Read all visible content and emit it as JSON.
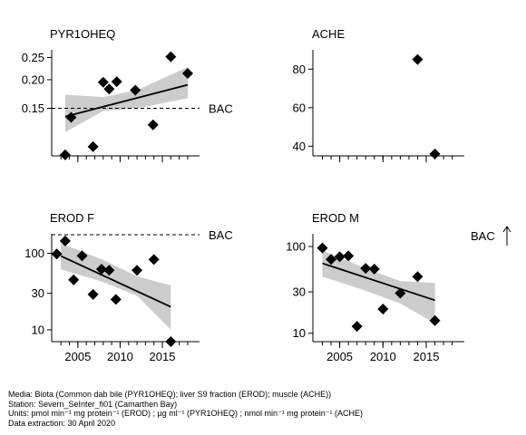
{
  "chart_data": [
    {
      "type": "scatter",
      "title": "PYR1OHEQ",
      "scale": "log",
      "ylim": [
        0.093,
        0.27
      ],
      "y_ticks": [
        0.15,
        0.2,
        0.25
      ],
      "y_tick_labels": [
        "0.15",
        "0.20",
        "0.25"
      ],
      "x_ticks": [
        2005,
        2010,
        2015
      ],
      "x_tick_labels": [
        "",
        "",
        ""
      ],
      "points": [
        {
          "x": 2003.5,
          "y": 0.094
        },
        {
          "x": 2004.2,
          "y": 0.137
        },
        {
          "x": 2006.8,
          "y": 0.102
        },
        {
          "x": 2008.0,
          "y": 0.195
        },
        {
          "x": 2008.7,
          "y": 0.182
        },
        {
          "x": 2009.6,
          "y": 0.196
        },
        {
          "x": 2011.8,
          "y": 0.18
        },
        {
          "x": 2013.9,
          "y": 0.127
        },
        {
          "x": 2016.0,
          "y": 0.252
        },
        {
          "x": 2018.0,
          "y": 0.213
        }
      ],
      "trend": {
        "x": [
          2003.5,
          2018.0
        ],
        "y": [
          0.138,
          0.19
        ]
      },
      "band": {
        "x": [
          2003.5,
          2008,
          2012,
          2018.0
        ],
        "lower": [
          0.118,
          0.146,
          0.15,
          0.166
        ],
        "upper": [
          0.172,
          0.168,
          0.18,
          0.227
        ]
      },
      "bac": {
        "value": 0.15,
        "label": "BAC"
      }
    },
    {
      "type": "scatter",
      "title": "ACHE",
      "scale": "linear",
      "ylim": [
        35,
        90
      ],
      "y_ticks": [
        40,
        60,
        80
      ],
      "y_tick_labels": [
        "40",
        "60",
        "80"
      ],
      "x_ticks": [
        2005,
        2010,
        2015
      ],
      "x_tick_labels": [
        "",
        "",
        ""
      ],
      "points": [
        {
          "x": 2014.0,
          "y": 85
        },
        {
          "x": 2016.0,
          "y": 36
        }
      ]
    },
    {
      "type": "scatter",
      "title": "EROD F",
      "scale": "log",
      "ylim": [
        7,
        180
      ],
      "y_ticks": [
        10,
        30,
        100
      ],
      "y_tick_labels": [
        "10",
        "30",
        "100"
      ],
      "x_ticks": [
        2005,
        2010,
        2015
      ],
      "x_tick_labels": [
        "2005",
        "2010",
        "2015"
      ],
      "points": [
        {
          "x": 2002.5,
          "y": 98
        },
        {
          "x": 2003.5,
          "y": 145
        },
        {
          "x": 2004.5,
          "y": 45
        },
        {
          "x": 2005.5,
          "y": 93
        },
        {
          "x": 2006.8,
          "y": 29
        },
        {
          "x": 2007.8,
          "y": 62
        },
        {
          "x": 2008.7,
          "y": 60
        },
        {
          "x": 2009.5,
          "y": 25
        },
        {
          "x": 2012.0,
          "y": 60
        },
        {
          "x": 2014.0,
          "y": 83
        },
        {
          "x": 2016.0,
          "y": 7
        }
      ],
      "trend": {
        "x": [
          2003.0,
          2016.0
        ],
        "y": [
          92,
          20
        ]
      },
      "band": {
        "x": [
          2003.0,
          2008,
          2012,
          2016.0
        ],
        "lower": [
          62,
          42,
          28,
          10
        ],
        "upper": [
          135,
          82,
          50,
          38
        ]
      },
      "bac": {
        "value": 175,
        "label": "BAC"
      }
    },
    {
      "type": "scatter",
      "title": "EROD M",
      "scale": "log",
      "ylim": [
        8,
        140
      ],
      "y_ticks": [
        10,
        30,
        100
      ],
      "y_tick_labels": [
        "10",
        "30",
        "100"
      ],
      "x_ticks": [
        2005,
        2010,
        2015
      ],
      "x_tick_labels": [
        "2005",
        "2010",
        "2015"
      ],
      "points": [
        {
          "x": 2003.0,
          "y": 96
        },
        {
          "x": 2004.0,
          "y": 71
        },
        {
          "x": 2005.0,
          "y": 76
        },
        {
          "x": 2006.0,
          "y": 78
        },
        {
          "x": 2007.0,
          "y": 12
        },
        {
          "x": 2008.0,
          "y": 56
        },
        {
          "x": 2009.0,
          "y": 55
        },
        {
          "x": 2010.0,
          "y": 19
        },
        {
          "x": 2012.0,
          "y": 29
        },
        {
          "x": 2014.0,
          "y": 45
        },
        {
          "x": 2016.0,
          "y": 14
        }
      ],
      "trend": {
        "x": [
          2003.0,
          2016.0
        ],
        "y": [
          64,
          24
        ]
      },
      "band": {
        "x": [
          2003.0,
          2008,
          2012,
          2016.0
        ],
        "lower": [
          45,
          31,
          22,
          13
        ],
        "upper": [
          90,
          56,
          40,
          38
        ]
      },
      "bac": {
        "label": "BAC",
        "above_range": true
      }
    }
  ],
  "footer": {
    "media": "Media: Biota (Common dab bile (PYR1OHEQ); liver S9 fraction (EROD); muscle (ACHE))",
    "station": "Station: Severn_SeInter_fi01 (Camarthen Bay)",
    "units": "Units:  pmol min⁻¹ mg protein⁻¹ (EROD) ;  µg ml⁻¹ (PYR1OHEQ) ;  nmol min⁻¹ mg protein⁻¹ (ACHE)",
    "extraction": "Data extraction: 30 April 2020"
  }
}
